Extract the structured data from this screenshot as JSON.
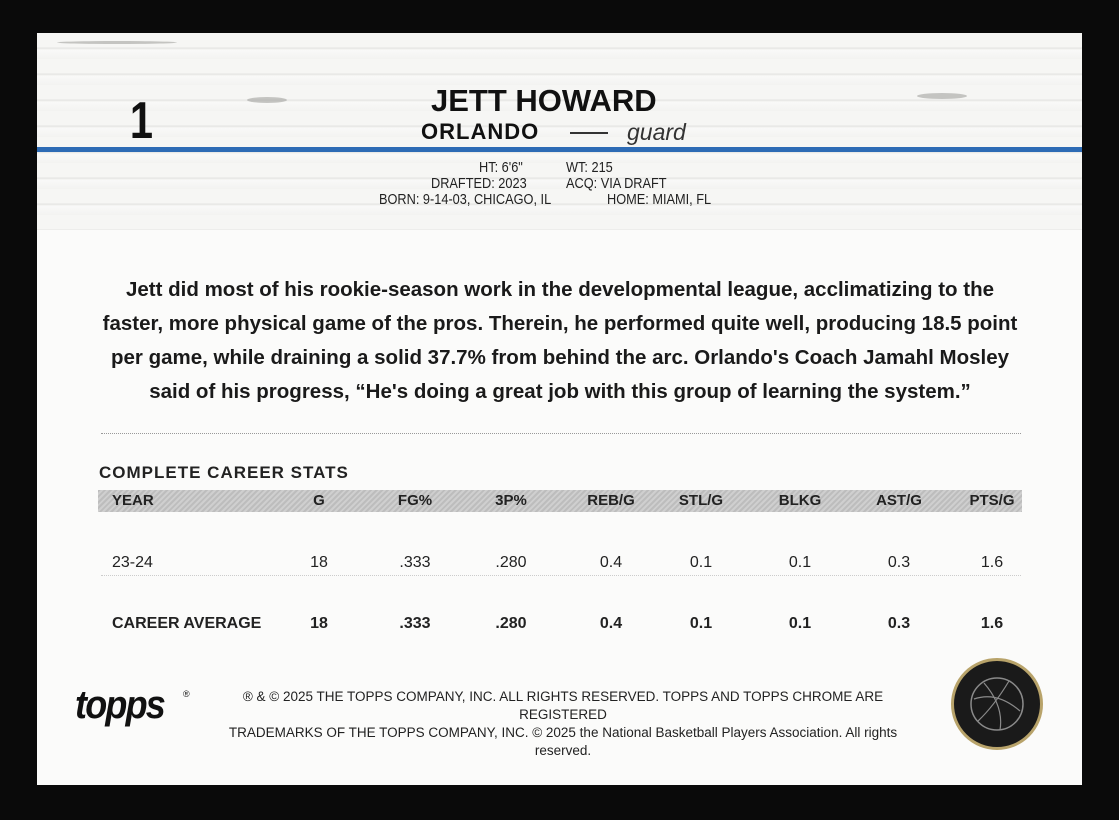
{
  "card_number": "1",
  "player": {
    "name": "JETT HOWARD",
    "team": "ORLANDO",
    "position": "guard"
  },
  "bio": {
    "height": "HT: 6'6\"",
    "weight": "WT: 215",
    "drafted": "DRAFTED: 2023",
    "acquired": "ACQ: VIA DRAFT",
    "born": "BORN: 9-14-03, CHICAGO, IL",
    "home": "HOME: MIAMI, FL"
  },
  "blurb": "Jett did most of his rookie-season work in the developmental league, acclimatizing to the faster, more physical game of the pros. Therein, he performed quite well, producing 18.5 point per game, while draining a solid 37.7% from behind the arc. Orlando's Coach Jamahl Mosley said of his progress,  “He's doing a great job with this group of learning the system.”",
  "stats": {
    "title": "COMPLETE CAREER STATS",
    "headers": [
      "YEAR",
      "G",
      "FG%",
      "3P%",
      "REB/G",
      "STL/G",
      "BLKG",
      "AST/G",
      "PTS/G"
    ],
    "rows": [
      [
        "23-24",
        "18",
        ".333",
        ".280",
        "0.4",
        "0.1",
        "0.1",
        "0.3",
        "1.6"
      ],
      [
        "CAREER AVERAGE",
        "18",
        ".333",
        ".280",
        "0.4",
        "0.1",
        "0.1",
        "0.3",
        "1.6"
      ]
    ]
  },
  "footer": {
    "brand_logo": "topps",
    "legal_line1": "® & © 2025 THE TOPPS COMPANY, INC. ALL RIGHTS RESERVED. TOPPS AND TOPPS CHROME ARE REGISTERED",
    "legal_line2": "TRADEMARKS OF THE TOPPS COMPANY, INC. © 2025 the National Basketball Players Association. All rights reserved.",
    "seal_text": "NATIONAL BASKETBALL PLAYERS ASSOCIATION"
  },
  "colors": {
    "accent_blue": "#2d6bb5",
    "seal_gold": "#b8a36a"
  }
}
